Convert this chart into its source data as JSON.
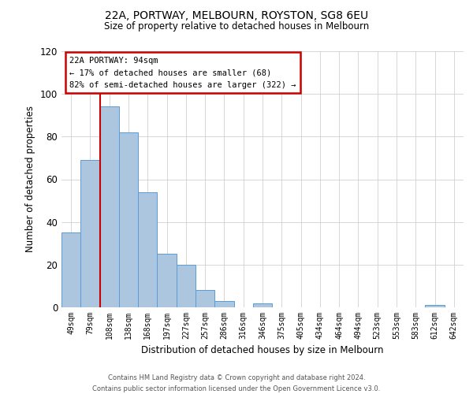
{
  "title": "22A, PORTWAY, MELBOURN, ROYSTON, SG8 6EU",
  "subtitle": "Size of property relative to detached houses in Melbourn",
  "xlabel": "Distribution of detached houses by size in Melbourn",
  "ylabel": "Number of detached properties",
  "bar_labels": [
    "49sqm",
    "79sqm",
    "108sqm",
    "138sqm",
    "168sqm",
    "197sqm",
    "227sqm",
    "257sqm",
    "286sqm",
    "316sqm",
    "346sqm",
    "375sqm",
    "405sqm",
    "434sqm",
    "464sqm",
    "494sqm",
    "523sqm",
    "553sqm",
    "583sqm",
    "612sqm",
    "642sqm"
  ],
  "bar_values": [
    35,
    69,
    94,
    82,
    54,
    25,
    20,
    8,
    3,
    0,
    2,
    0,
    0,
    0,
    0,
    0,
    0,
    0,
    0,
    1,
    0
  ],
  "bar_color": "#adc6e0",
  "bar_edge_color": "#5b9bd5",
  "ylim": [
    0,
    120
  ],
  "yticks": [
    0,
    20,
    40,
    60,
    80,
    100,
    120
  ],
  "vline_color": "#cc0000",
  "annotation_title": "22A PORTWAY: 94sqm",
  "annotation_line1": "← 17% of detached houses are smaller (68)",
  "annotation_line2": "82% of semi-detached houses are larger (322) →",
  "annotation_box_color": "#cc0000",
  "footer_line1": "Contains HM Land Registry data © Crown copyright and database right 2024.",
  "footer_line2": "Contains public sector information licensed under the Open Government Licence v3.0.",
  "bg_color": "#ffffff",
  "grid_color": "#c8c8c8"
}
